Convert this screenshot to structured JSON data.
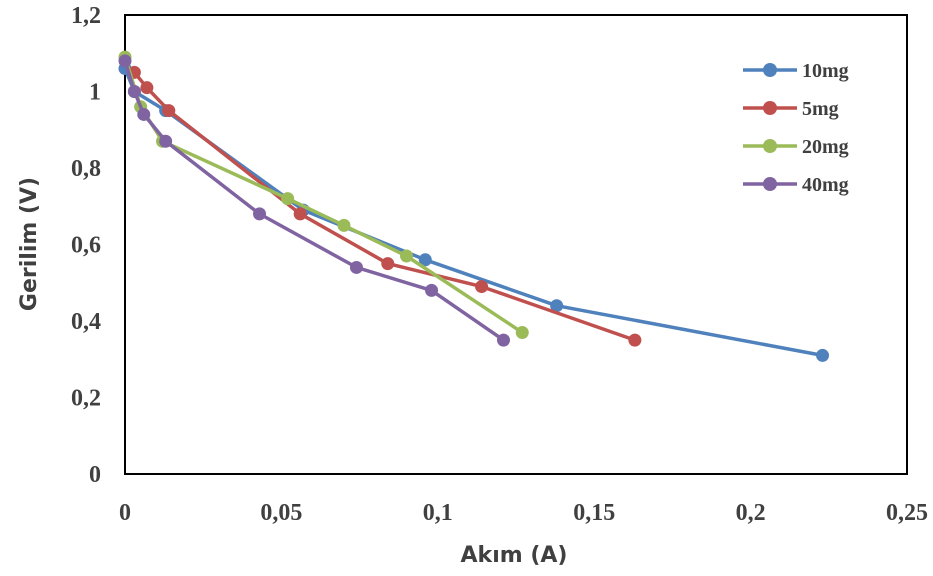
{
  "chart_data": {
    "type": "line",
    "xlabel": "Akım (A)",
    "ylabel": "Gerilim (V)",
    "xlim": [
      0,
      0.25
    ],
    "ylim": [
      0,
      1.2
    ],
    "x_ticks": [
      "0",
      "0,05",
      "0,1",
      "0,15",
      "0,2",
      "0,25"
    ],
    "x_tick_values": [
      0,
      0.05,
      0.1,
      0.15,
      0.2,
      0.25
    ],
    "y_ticks": [
      "0",
      "0,2",
      "0,4",
      "0,6",
      "0,8",
      "1",
      "1,2"
    ],
    "y_tick_values": [
      0,
      0.2,
      0.4,
      0.6,
      0.8,
      1.0,
      1.2
    ],
    "grid": false,
    "legend_position": "top-right",
    "series": [
      {
        "name": "10mg",
        "color": "#4f81bd",
        "x": [
          0.0,
          0.003,
          0.013,
          0.057,
          0.096,
          0.138,
          0.223
        ],
        "y": [
          1.06,
          1.0,
          0.95,
          0.69,
          0.56,
          0.44,
          0.31
        ]
      },
      {
        "name": "5mg",
        "color": "#c0504d",
        "x": [
          0.003,
          0.007,
          0.014,
          0.056,
          0.084,
          0.114,
          0.163
        ],
        "y": [
          1.05,
          1.01,
          0.95,
          0.68,
          0.55,
          0.49,
          0.35
        ]
      },
      {
        "name": "20mg",
        "color": "#9bbb59",
        "x": [
          0.0,
          0.005,
          0.012,
          0.052,
          0.07,
          0.09,
          0.127
        ],
        "y": [
          1.09,
          0.96,
          0.87,
          0.72,
          0.65,
          0.57,
          0.37
        ]
      },
      {
        "name": "40mg",
        "color": "#8064a2",
        "x": [
          0.0,
          0.003,
          0.006,
          0.013,
          0.043,
          0.074,
          0.098,
          0.121
        ],
        "y": [
          1.08,
          1.0,
          0.94,
          0.87,
          0.68,
          0.54,
          0.48,
          0.35
        ]
      }
    ]
  }
}
